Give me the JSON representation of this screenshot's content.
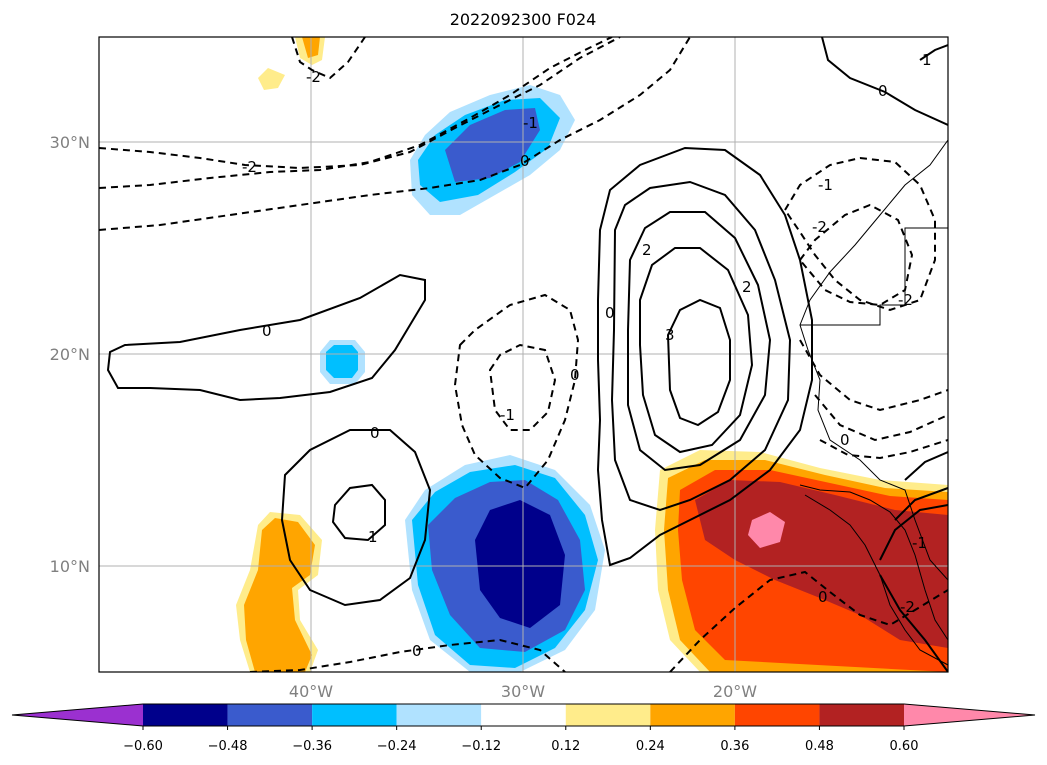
{
  "title": "2022092300 F024",
  "map": {
    "lat_labels": [
      "30°N",
      "20°N",
      "10°N"
    ],
    "lon_labels": [
      "40°W",
      "30°W",
      "20°W"
    ],
    "contour_labels": [
      "-2",
      "-2",
      "-1",
      "0",
      "0",
      "0",
      "-1",
      "0",
      "1",
      "2",
      "3",
      "2",
      "0",
      "-2",
      "-2",
      "-1",
      "0",
      "0",
      "1",
      "0",
      "-1",
      "0",
      "-2"
    ]
  },
  "colorbar": {
    "ticks": [
      "−0.60",
      "−0.48",
      "−0.36",
      "−0.24",
      "−0.12",
      "0.12",
      "0.24",
      "0.36",
      "0.48",
      "0.60"
    ],
    "colors": [
      "#9b30d0",
      "#00008b",
      "#3a5bcd",
      "#00bfff",
      "#b0e2ff",
      "#ffffff",
      "#ffec8b",
      "#ffa500",
      "#ff4500",
      "#b22222",
      "#ff88aa"
    ]
  }
}
